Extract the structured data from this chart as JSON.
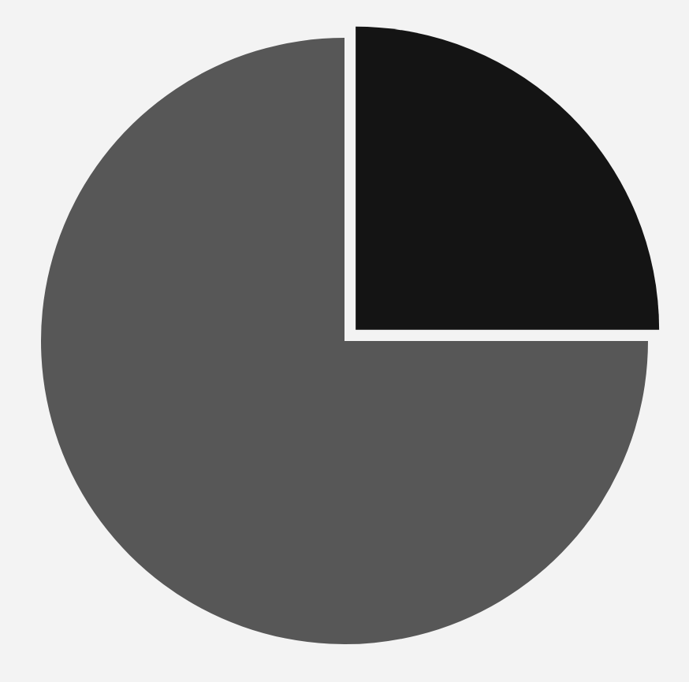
{
  "chart_data": {
    "type": "pie",
    "categories": [
      null,
      null
    ],
    "values": [
      25,
      75
    ],
    "colors": [
      "#141414",
      "#575757"
    ],
    "legend": false
  }
}
